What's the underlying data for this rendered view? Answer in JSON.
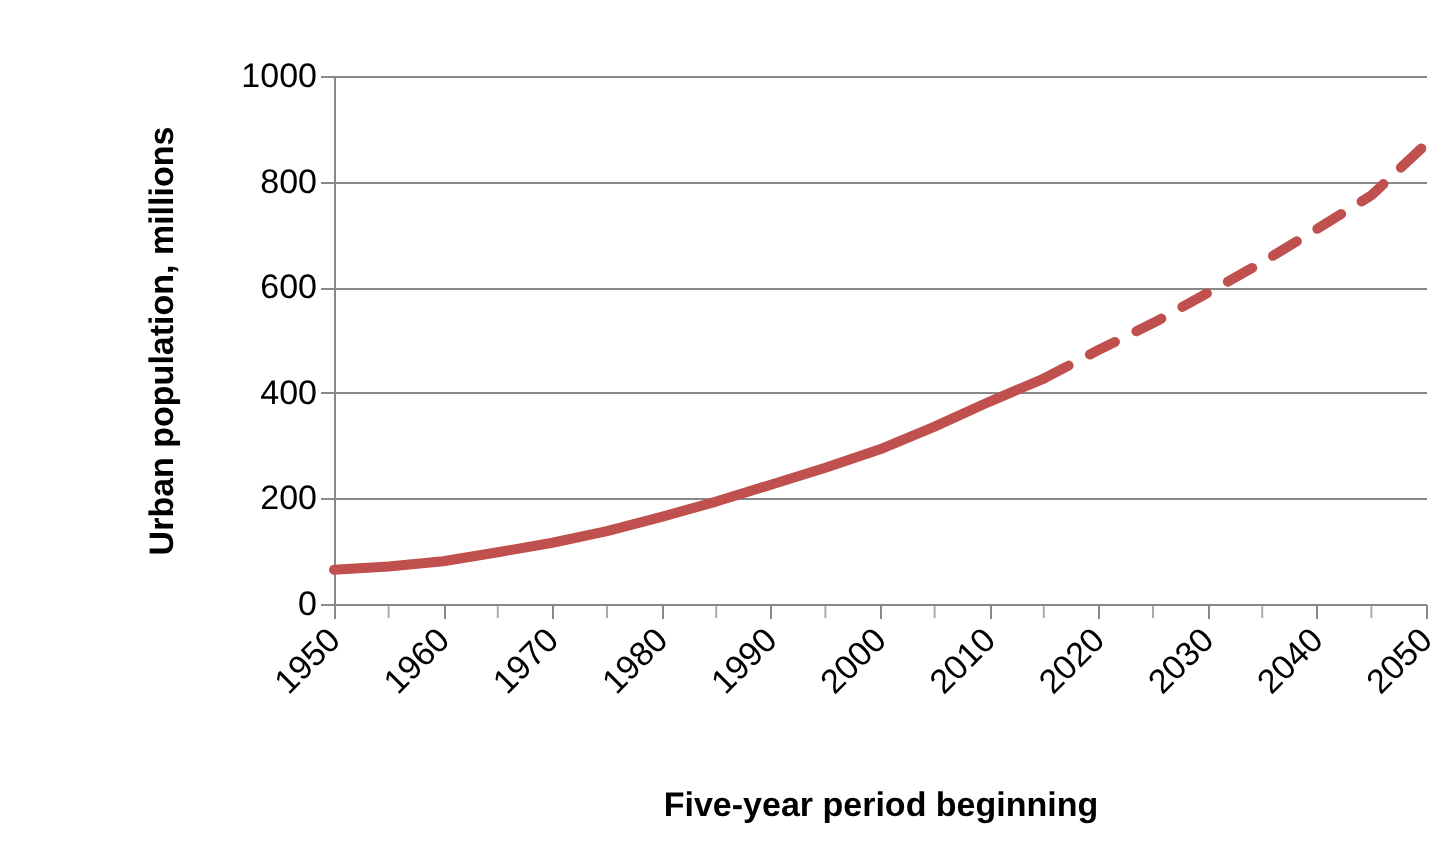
{
  "chart_data": {
    "type": "line",
    "xlabel": "Five-year period beginning",
    "ylabel": "Urban population, millions",
    "xlim": [
      1950,
      2050
    ],
    "ylim": [
      0,
      1000
    ],
    "xticks": [
      1950,
      {
        "value": 1955,
        "label": null
      },
      1960,
      {
        "value": 1965,
        "label": null
      },
      1970,
      {
        "value": 1975,
        "label": null
      },
      1980,
      {
        "value": 1985,
        "label": null
      },
      1990,
      {
        "value": 1995,
        "label": null
      },
      2000,
      {
        "value": 2005,
        "label": null
      },
      2010,
      {
        "value": 2015,
        "label": null
      },
      2020,
      {
        "value": 2025,
        "label": null
      },
      2030,
      {
        "value": 2035,
        "label": null
      },
      2040,
      {
        "value": 2045,
        "label": null
      },
      2050
    ],
    "yticks": [
      0,
      200,
      400,
      600,
      800,
      1000
    ],
    "grid": "y",
    "series": [
      {
        "color": "#c0504d",
        "line_style": "solid",
        "x": [
          1950,
          1955,
          1960,
          1965,
          1970,
          1975,
          1980,
          1985,
          1990,
          1995,
          2000,
          2005,
          2010,
          2015
        ],
        "values": [
          65,
          71,
          81,
          98,
          116,
          138,
          165,
          194,
          226,
          258,
          293,
          336,
          383,
          427
        ]
      },
      {
        "color": "#c0504d",
        "line_style": "dashed",
        "x": [
          2015,
          2020,
          2025,
          2030,
          2035,
          2040,
          2045,
          2050
        ],
        "values": [
          427,
          481,
          532,
          589,
          647,
          710,
          774,
          871
        ]
      }
    ]
  }
}
